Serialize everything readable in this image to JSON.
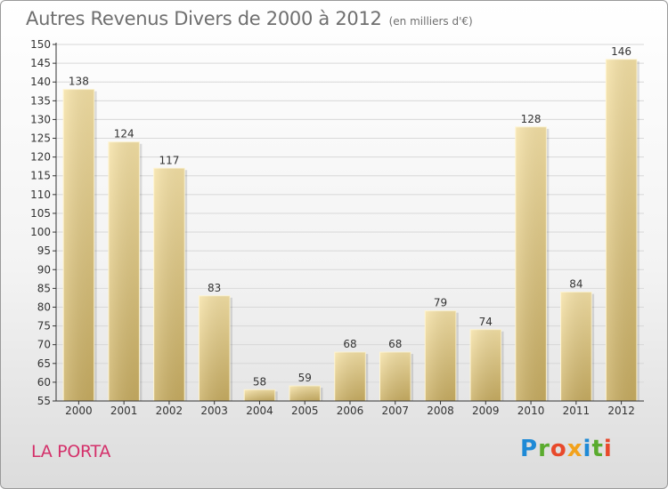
{
  "header": {
    "title": "Autres Revenus Divers de 2000 à 2012",
    "subtitle": "(en milliers d'€)"
  },
  "footer": {
    "location": "LA PORTA",
    "brand": "Proxiti"
  },
  "chart_data": {
    "type": "bar",
    "title": "Autres Revenus Divers de 2000 à 2012",
    "subtitle": "(en milliers d'€)",
    "categories": [
      "2000",
      "2001",
      "2002",
      "2003",
      "2004",
      "2005",
      "2006",
      "2007",
      "2008",
      "2009",
      "2010",
      "2011",
      "2012"
    ],
    "values": [
      138,
      124,
      117,
      83,
      58,
      59,
      68,
      68,
      79,
      74,
      128,
      84,
      146
    ],
    "ylim": [
      55,
      150
    ],
    "yticks": [
      55,
      60,
      65,
      70,
      75,
      80,
      85,
      90,
      95,
      100,
      105,
      110,
      115,
      120,
      125,
      130,
      135,
      140,
      145,
      150
    ],
    "grid": true,
    "legend": "none",
    "colors": {
      "bar_light": "#f6e2a6",
      "bar_dark": "#c9ae62",
      "grid": "#d8d8d8",
      "axis": "#333333"
    }
  }
}
